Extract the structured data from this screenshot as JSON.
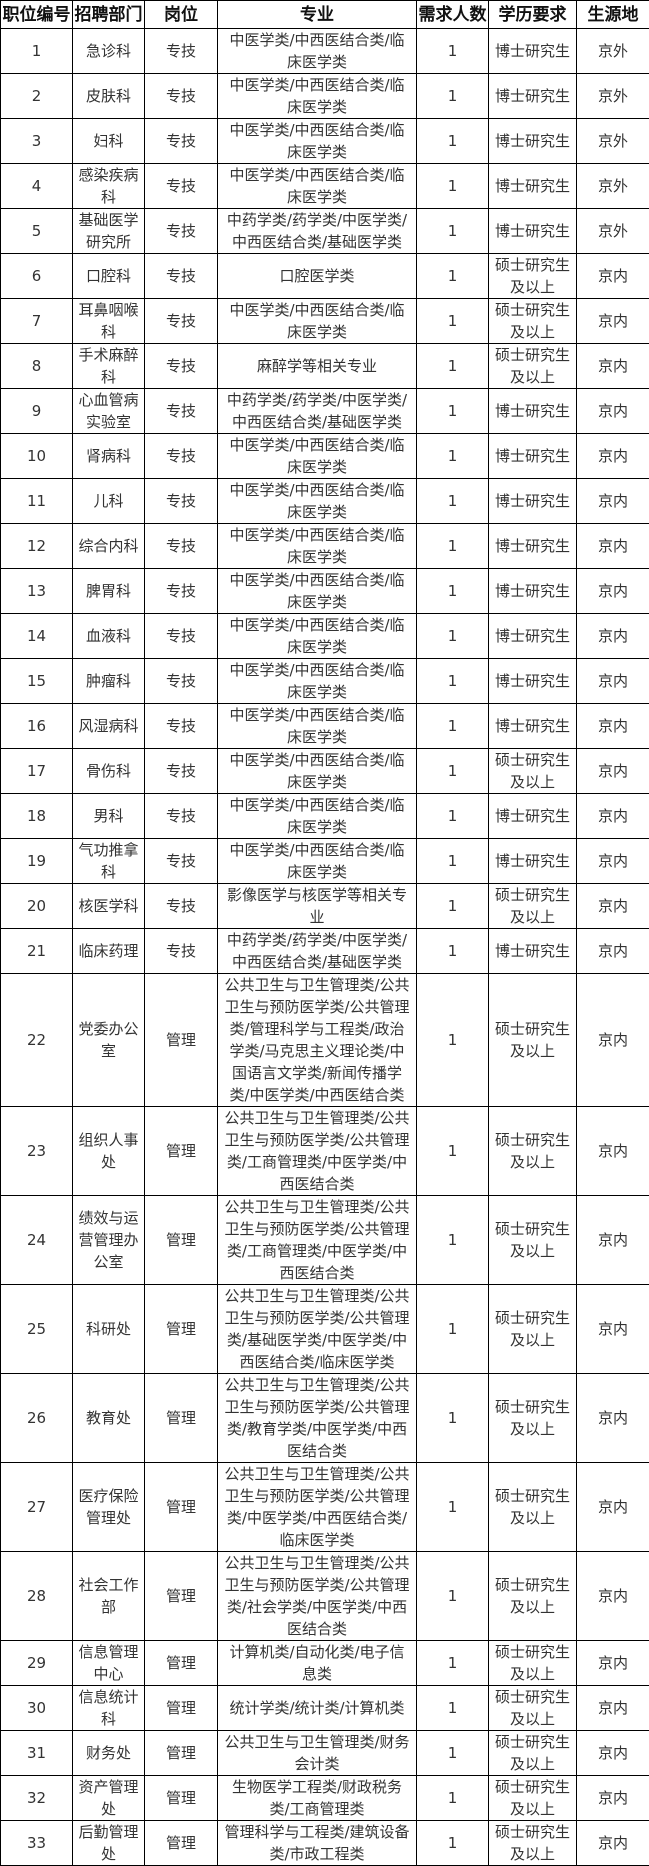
{
  "headers": [
    "职位编号",
    "招聘部门",
    "岗位",
    "专业",
    "需求人数",
    "学历要求",
    "生源地"
  ],
  "rows": [
    {
      "id": "1",
      "dept": "急诊科",
      "post": "专技",
      "major": "中医学类/中西医结合类/临床医学类",
      "count": "1",
      "edu": "博士研究生",
      "origin": "京外",
      "lines": 2
    },
    {
      "id": "2",
      "dept": "皮肤科",
      "post": "专技",
      "major": "中医学类/中西医结合类/临床医学类",
      "count": "1",
      "edu": "博士研究生",
      "origin": "京外",
      "lines": 2
    },
    {
      "id": "3",
      "dept": "妇科",
      "post": "专技",
      "major": "中医学类/中西医结合类/临床医学类",
      "count": "1",
      "edu": "博士研究生",
      "origin": "京外",
      "lines": 2
    },
    {
      "id": "4",
      "dept": "感染疾病科",
      "post": "专技",
      "major": "中医学类/中西医结合类/临床医学类",
      "count": "1",
      "edu": "博士研究生",
      "origin": "京外",
      "lines": 2
    },
    {
      "id": "5",
      "dept": "基础医学研究所",
      "post": "专技",
      "major": "中药学类/药学类/中医学类/中西医结合类/基础医学类",
      "count": "1",
      "edu": "博士研究生",
      "origin": "京外",
      "lines": 2
    },
    {
      "id": "6",
      "dept": "口腔科",
      "post": "专技",
      "major": "口腔医学类",
      "count": "1",
      "edu": "硕士研究生及以上",
      "origin": "京内",
      "lines": 2
    },
    {
      "id": "7",
      "dept": "耳鼻咽喉科",
      "post": "专技",
      "major": "中医学类/中西医结合类/临床医学类",
      "count": "1",
      "edu": "硕士研究生及以上",
      "origin": "京内",
      "lines": 2
    },
    {
      "id": "8",
      "dept": "手术麻醉科",
      "post": "专技",
      "major": "麻醉学等相关专业",
      "count": "1",
      "edu": "硕士研究生及以上",
      "origin": "京内",
      "lines": 2
    },
    {
      "id": "9",
      "dept": "心血管病实验室",
      "post": "专技",
      "major": "中药学类/药学类/中医学类/中西医结合类/基础医学类",
      "count": "1",
      "edu": "博士研究生",
      "origin": "京内",
      "lines": 2
    },
    {
      "id": "10",
      "dept": "肾病科",
      "post": "专技",
      "major": "中医学类/中西医结合类/临床医学类",
      "count": "1",
      "edu": "博士研究生",
      "origin": "京内",
      "lines": 2
    },
    {
      "id": "11",
      "dept": "儿科",
      "post": "专技",
      "major": "中医学类/中西医结合类/临床医学类",
      "count": "1",
      "edu": "博士研究生",
      "origin": "京内",
      "lines": 2
    },
    {
      "id": "12",
      "dept": "综合内科",
      "post": "专技",
      "major": "中医学类/中西医结合类/临床医学类",
      "count": "1",
      "edu": "博士研究生",
      "origin": "京内",
      "lines": 2
    },
    {
      "id": "13",
      "dept": "脾胃科",
      "post": "专技",
      "major": "中医学类/中西医结合类/临床医学类",
      "count": "1",
      "edu": "博士研究生",
      "origin": "京内",
      "lines": 2
    },
    {
      "id": "14",
      "dept": "血液科",
      "post": "专技",
      "major": "中医学类/中西医结合类/临床医学类",
      "count": "1",
      "edu": "博士研究生",
      "origin": "京内",
      "lines": 2
    },
    {
      "id": "15",
      "dept": "肿瘤科",
      "post": "专技",
      "major": "中医学类/中西医结合类/临床医学类",
      "count": "1",
      "edu": "博士研究生",
      "origin": "京内",
      "lines": 2
    },
    {
      "id": "16",
      "dept": "风湿病科",
      "post": "专技",
      "major": "中医学类/中西医结合类/临床医学类",
      "count": "1",
      "edu": "博士研究生",
      "origin": "京内",
      "lines": 2
    },
    {
      "id": "17",
      "dept": "骨伤科",
      "post": "专技",
      "major": "中医学类/中西医结合类/临床医学类",
      "count": "1",
      "edu": "硕士研究生及以上",
      "origin": "京内",
      "lines": 2
    },
    {
      "id": "18",
      "dept": "男科",
      "post": "专技",
      "major": "中医学类/中西医结合类/临床医学类",
      "count": "1",
      "edu": "博士研究生",
      "origin": "京内",
      "lines": 2
    },
    {
      "id": "19",
      "dept": "气功推拿科",
      "post": "专技",
      "major": "中医学类/中西医结合类/临床医学类",
      "count": "1",
      "edu": "博士研究生",
      "origin": "京内",
      "lines": 2
    },
    {
      "id": "20",
      "dept": "核医学科",
      "post": "专技",
      "major": "影像医学与核医学等相关专业",
      "count": "1",
      "edu": "硕士研究生及以上",
      "origin": "京内",
      "lines": 2
    },
    {
      "id": "21",
      "dept": "临床药理",
      "post": "专技",
      "major": "中药学类/药学类/中医学类/中西医结合类/基础医学类",
      "count": "1",
      "edu": "博士研究生",
      "origin": "京内",
      "lines": 2
    },
    {
      "id": "22",
      "dept": "党委办公室",
      "post": "管理",
      "major": "公共卫生与卫生管理类/公共卫生与预防医学类/公共管理类/管理科学与工程类/政治学类/马克思主义理论类/中国语言文学类/新闻传播学类/中医学类/中西医结合类",
      "count": "1",
      "edu": "硕士研究生及以上",
      "origin": "京内",
      "lines": 6
    },
    {
      "id": "23",
      "dept": "组织人事处",
      "post": "管理",
      "major": "公共卫生与卫生管理类/公共卫生与预防医学类/公共管理类/工商管理类/中医学类/中西医结合类",
      "count": "1",
      "edu": "硕士研究生及以上",
      "origin": "京内",
      "lines": 4
    },
    {
      "id": "24",
      "dept": "绩效与运营管理办公室",
      "post": "管理",
      "major": "公共卫生与卫生管理类/公共卫生与预防医学类/公共管理类/工商管理类/中医学类/中西医结合类",
      "count": "1",
      "edu": "硕士研究生及以上",
      "origin": "京内",
      "lines": 4
    },
    {
      "id": "25",
      "dept": "科研处",
      "post": "管理",
      "major": "公共卫生与卫生管理类/公共卫生与预防医学类/公共管理类/基础医学类/中医学类/中西医结合类/临床医学类",
      "count": "1",
      "edu": "硕士研究生及以上",
      "origin": "京内",
      "lines": 4
    },
    {
      "id": "26",
      "dept": "教育处",
      "post": "管理",
      "major": "公共卫生与卫生管理类/公共卫生与预防医学类/公共管理类/教育学类/中医学类/中西医结合类",
      "count": "1",
      "edu": "硕士研究生及以上",
      "origin": "京内",
      "lines": 4
    },
    {
      "id": "27",
      "dept": "医疗保险管理处",
      "post": "管理",
      "major": "公共卫生与卫生管理类/公共卫生与预防医学类/公共管理类/中医学类/中西医结合类/临床医学类",
      "count": "1",
      "edu": "硕士研究生及以上",
      "origin": "京内",
      "lines": 4
    },
    {
      "id": "28",
      "dept": "社会工作部",
      "post": "管理",
      "major": "公共卫生与卫生管理类/公共卫生与预防医学类/公共管理类/社会学类/中医学类/中西医结合类",
      "count": "1",
      "edu": "硕士研究生及以上",
      "origin": "京内",
      "lines": 4
    },
    {
      "id": "29",
      "dept": "信息管理中心",
      "post": "管理",
      "major": "计算机类/自动化类/电子信息类",
      "count": "1",
      "edu": "硕士研究生及以上",
      "origin": "京内",
      "lines": 2
    },
    {
      "id": "30",
      "dept": "信息统计科",
      "post": "管理",
      "major": "统计学类/统计类/计算机类",
      "count": "1",
      "edu": "硕士研究生及以上",
      "origin": "京内",
      "lines": 2
    },
    {
      "id": "31",
      "dept": "财务处",
      "post": "管理",
      "major": "公共卫生与卫生管理类/财务会计类",
      "count": "1",
      "edu": "硕士研究生及以上",
      "origin": "京内",
      "lines": 2
    },
    {
      "id": "32",
      "dept": "资产管理处",
      "post": "管理",
      "major": "生物医学工程类/财政税务类/工商管理类",
      "count": "1",
      "edu": "硕士研究生及以上",
      "origin": "京内",
      "lines": 2
    },
    {
      "id": "33",
      "dept": "后勤管理处",
      "post": "管理",
      "major": "管理科学与工程类/建筑设备类/市政工程类",
      "count": "1",
      "edu": "硕士研究生及以上",
      "origin": "京内",
      "lines": 2
    }
  ]
}
